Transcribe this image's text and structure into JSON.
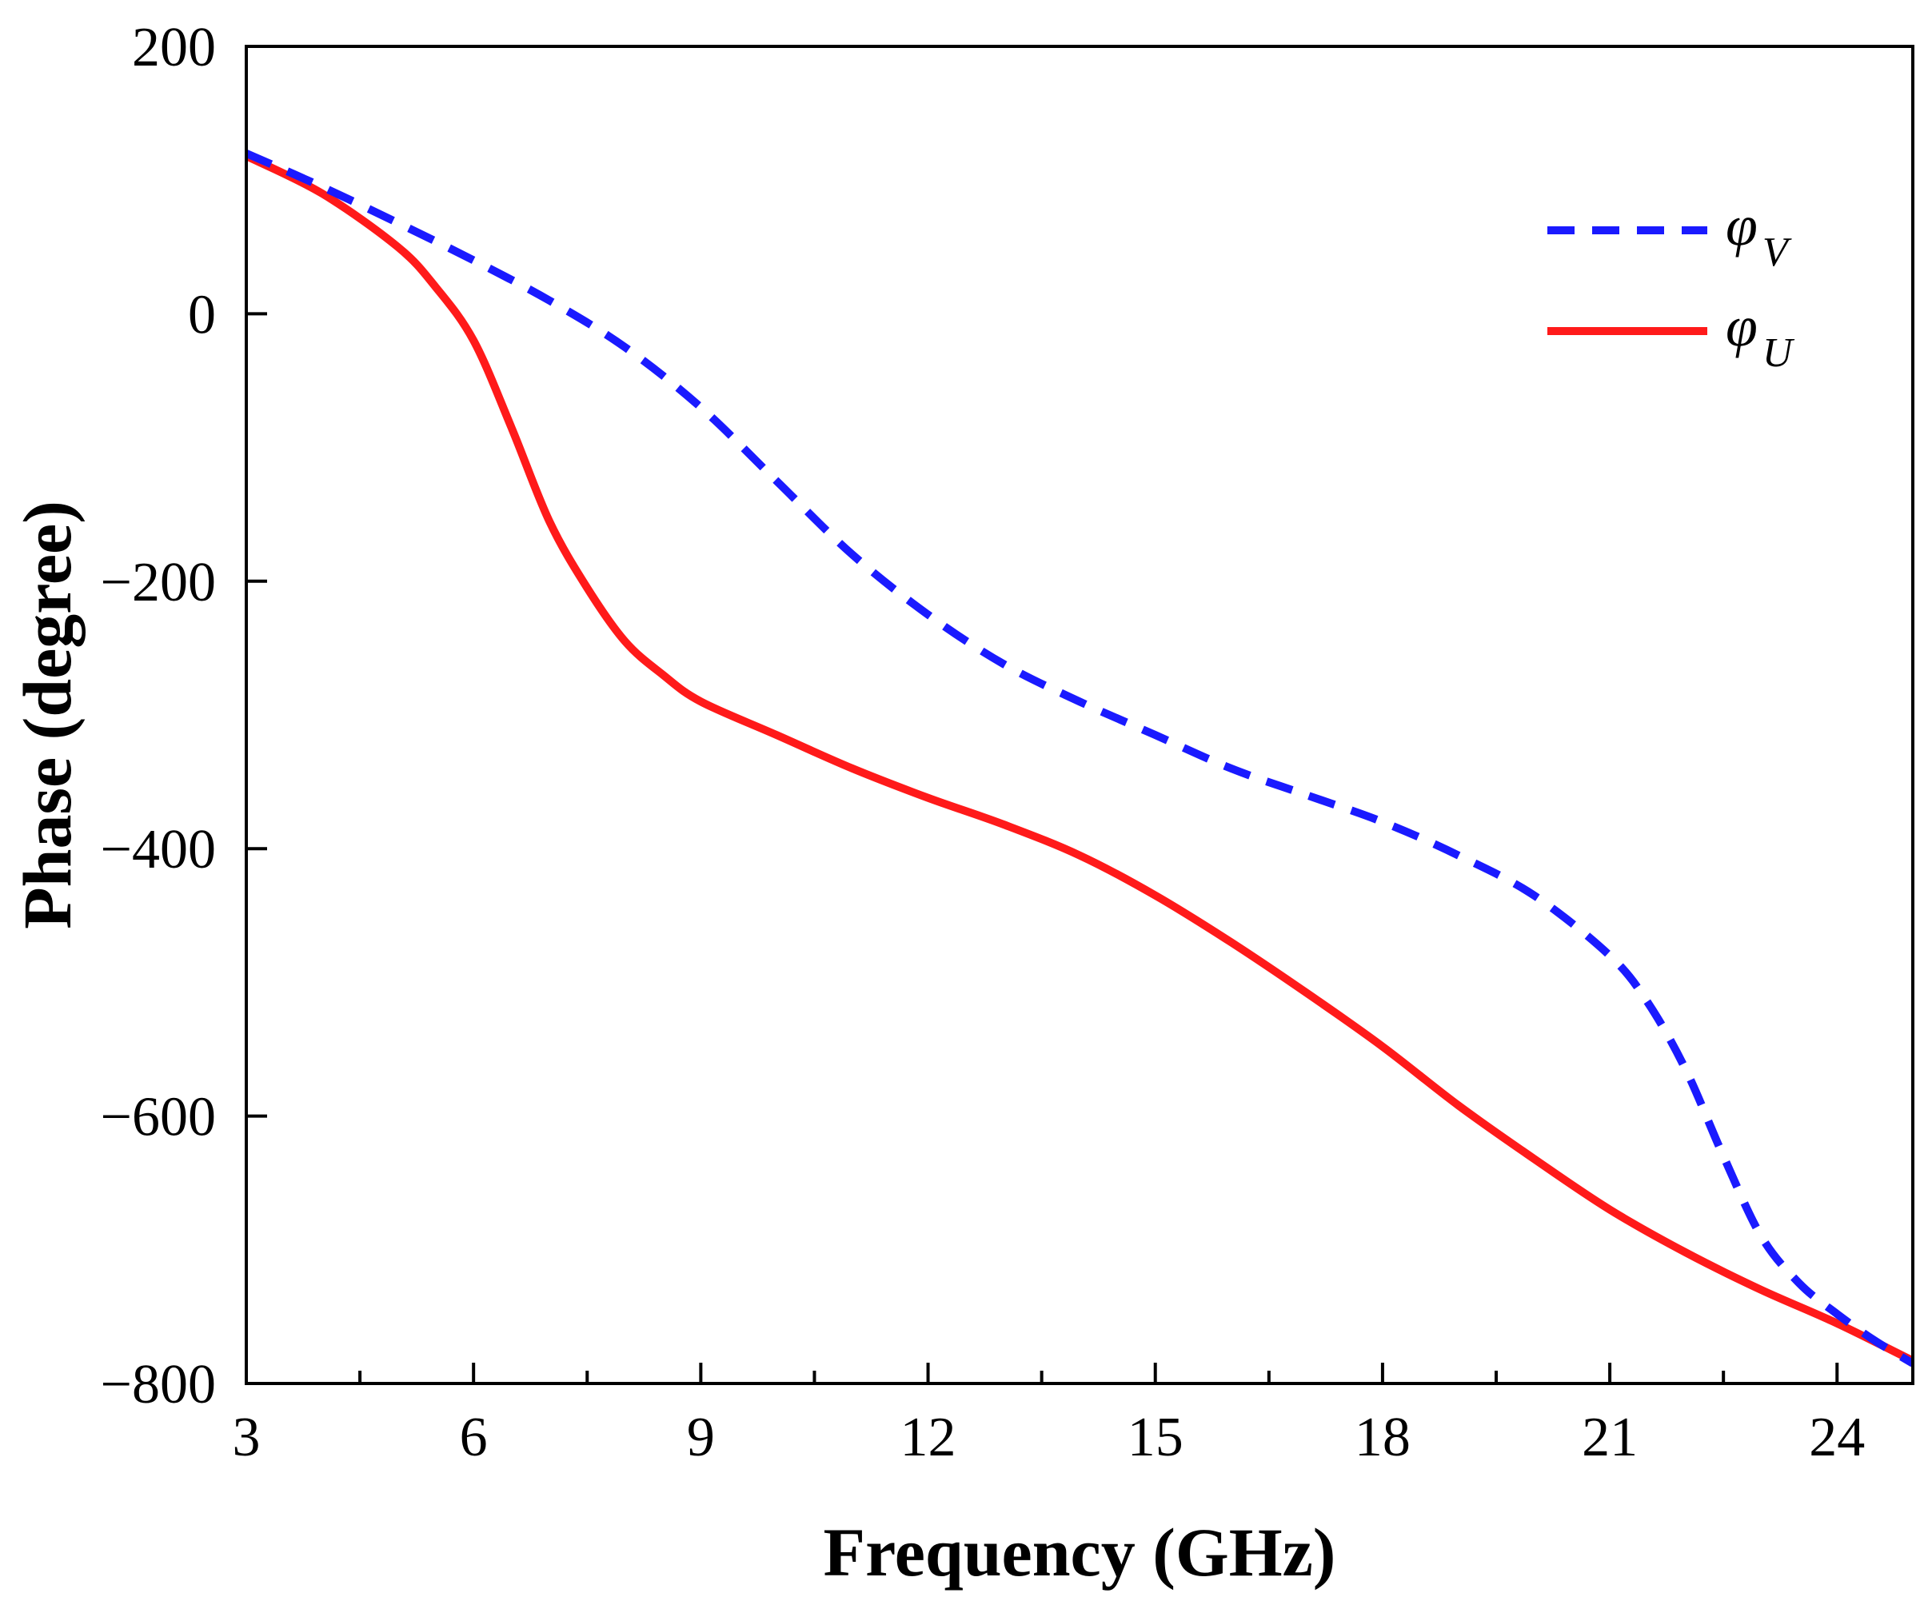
{
  "chart_data": {
    "type": "line",
    "title": "",
    "xlabel": "Frequency (GHz)",
    "ylabel": "Phase (degree)",
    "xlim": [
      3,
      25
    ],
    "ylim": [
      -800,
      200
    ],
    "x_ticks": [
      3,
      6,
      9,
      12,
      15,
      18,
      21,
      24
    ],
    "x_tick_labels": [
      "3",
      "6",
      "9",
      "12",
      "15",
      "18",
      "21",
      "24"
    ],
    "x_minor_ticks": [
      4.5,
      7.5,
      10.5,
      13.5,
      16.5,
      19.5,
      22.5
    ],
    "y_ticks": [
      200,
      0,
      -200,
      -400,
      -600,
      -800
    ],
    "y_tick_labels": [
      "200",
      "0",
      "−200",
      "−400",
      "−600",
      "−800"
    ],
    "grid": false,
    "legend_position": "top-right",
    "series": [
      {
        "name": "φV",
        "symbol": "φ",
        "subscript": "V",
        "color": "#1a1aff",
        "style": "dashed",
        "x": [
          3,
          4,
          5,
          6,
          7,
          8,
          9,
          10,
          11,
          12,
          13,
          14,
          15,
          16,
          17,
          18,
          19,
          20,
          21,
          21.5,
          22,
          22.5,
          23,
          23.5,
          24,
          24.5,
          25
        ],
        "y": [
          120,
          95,
          68,
          40,
          10,
          -25,
          -70,
          -125,
          -180,
          -225,
          -262,
          -290,
          -315,
          -340,
          -360,
          -380,
          -405,
          -435,
          -480,
          -515,
          -565,
          -630,
          -690,
          -725,
          -748,
          -768,
          -785
        ]
      },
      {
        "name": "φU",
        "symbol": "φ",
        "subscript": "U",
        "color": "#ff1a1a",
        "style": "solid",
        "x": [
          3,
          4,
          5,
          5.5,
          6,
          6.5,
          7,
          7.5,
          8,
          8.5,
          9,
          10,
          11,
          12,
          13,
          14,
          15,
          16,
          17,
          18,
          19,
          20,
          21,
          22,
          23,
          24,
          25
        ],
        "y": [
          118,
          90,
          50,
          20,
          -20,
          -85,
          -155,
          -205,
          -245,
          -270,
          -290,
          -315,
          -340,
          -362,
          -382,
          -405,
          -435,
          -470,
          -508,
          -548,
          -592,
          -632,
          -670,
          -702,
          -730,
          -755,
          -783
        ]
      }
    ]
  }
}
